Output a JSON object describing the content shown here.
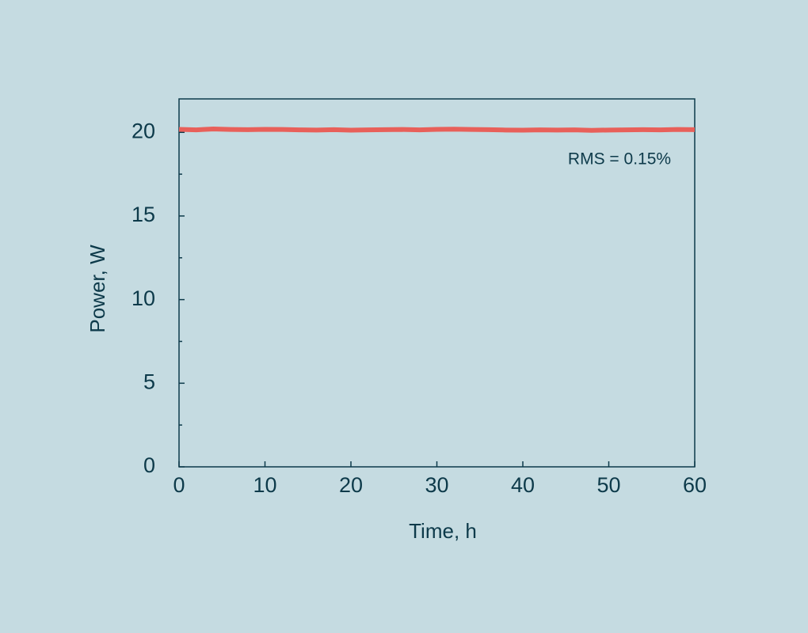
{
  "chart_data": {
    "type": "line",
    "x_label": "Time, h",
    "y_label": "Power, W",
    "annotation": "RMS = 0.15%",
    "x": [
      0,
      2,
      4,
      6,
      8,
      10,
      12,
      14,
      16,
      18,
      20,
      22,
      24,
      26,
      28,
      30,
      32,
      34,
      36,
      38,
      40,
      42,
      44,
      46,
      48,
      50,
      52,
      54,
      56,
      58,
      60
    ],
    "series": [
      {
        "name": "Power",
        "color": "#e8605a",
        "values": [
          20.18,
          20.15,
          20.2,
          20.17,
          20.16,
          20.18,
          20.17,
          20.15,
          20.14,
          20.16,
          20.13,
          20.15,
          20.16,
          20.17,
          20.15,
          20.18,
          20.19,
          20.17,
          20.16,
          20.14,
          20.13,
          20.15,
          20.14,
          20.15,
          20.12,
          20.14,
          20.15,
          20.16,
          20.15,
          20.17,
          20.16
        ]
      }
    ],
    "xlim": [
      0,
      60
    ],
    "xticks": [
      0,
      10,
      20,
      30,
      40,
      50,
      60
    ],
    "ylim": [
      0,
      22
    ],
    "yticks": [
      0,
      5,
      10,
      15,
      20
    ],
    "yminor_ticks": [
      2.5,
      7.5,
      12.5,
      17.5
    ],
    "grid": false
  }
}
